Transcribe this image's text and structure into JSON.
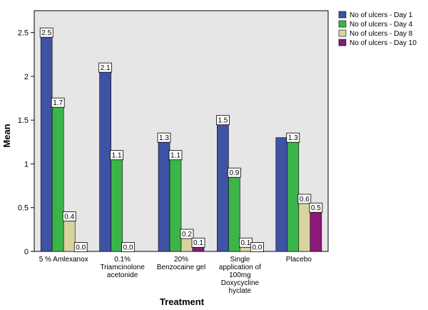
{
  "chart_data": {
    "type": "bar",
    "categories": [
      [
        "5 % Amlexanox"
      ],
      [
        "0.1%",
        "Triamcinolone",
        "acetonide"
      ],
      [
        "20%",
        "Benzocaine gel"
      ],
      [
        "Single",
        "application of",
        "100mg",
        "Doxycycline",
        "hyclate"
      ],
      [
        "Placebo"
      ]
    ],
    "series": [
      {
        "name": "No of ulcers - Day 1",
        "color": "#3e53a4",
        "values": [
          2.5,
          2.1,
          1.3,
          1.5,
          1.3
        ],
        "labels": [
          "2.5",
          "2.1",
          "1.3",
          "1.5",
          null
        ]
      },
      {
        "name": "No of ulcers - Day 4",
        "color": "#3cb44a",
        "values": [
          1.7,
          1.1,
          1.1,
          0.9,
          1.3
        ],
        "labels": [
          "1.7",
          "1.1",
          "1.1",
          "0.9",
          "1.3"
        ]
      },
      {
        "name": "No of ulcers - Day 8",
        "color": "#d9d3a0",
        "values": [
          0.4,
          0.0,
          0.2,
          0.1,
          0.6
        ],
        "labels": [
          "0.4",
          "0.0",
          "0.2",
          "0.1",
          "0.6"
        ]
      },
      {
        "name": "No of ulcers - Day 10",
        "color": "#8b1a7a",
        "values": [
          0.0,
          null,
          0.1,
          0.0,
          0.5
        ],
        "labels": [
          "0.0",
          null,
          "0.1",
          "0.0",
          "0.5"
        ]
      }
    ],
    "xlabel": "Treatment",
    "ylabel": "Mean",
    "ylim": [
      0,
      2.75
    ],
    "yticks": [
      "0",
      "0.5",
      "1",
      "1.5",
      "2",
      "2.5"
    ],
    "plot_background": "#e6e6e6",
    "legend_position": "top-right",
    "grid": false
  }
}
